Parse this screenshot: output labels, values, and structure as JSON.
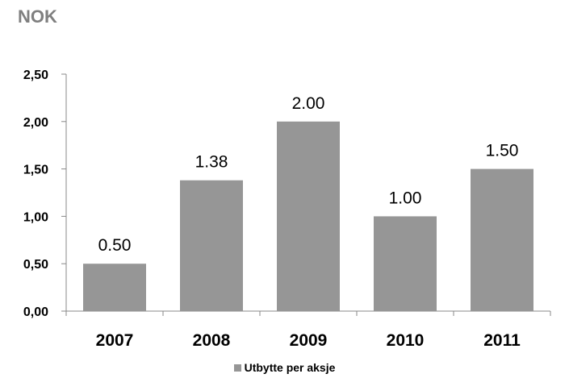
{
  "chart_data": {
    "type": "bar",
    "unit": "NOK",
    "categories": [
      "2007",
      "2008",
      "2009",
      "2010",
      "2011"
    ],
    "series": [
      {
        "name": "Utbytte per aksje",
        "values": [
          0.5,
          1.38,
          2.0,
          1.0,
          1.5
        ],
        "data_labels": [
          "0.50",
          "1.38",
          "2.00",
          "1.00",
          "1.50"
        ],
        "color": "#969696"
      }
    ],
    "ylim": [
      0,
      2.5
    ],
    "yticks": [
      0,
      0.5,
      1,
      1.5,
      2,
      2.5
    ],
    "ytick_labels": [
      "0,00",
      "0,50",
      "1,00",
      "1,50",
      "2,00",
      "2,50"
    ],
    "grid": false,
    "legend": "bottom"
  }
}
